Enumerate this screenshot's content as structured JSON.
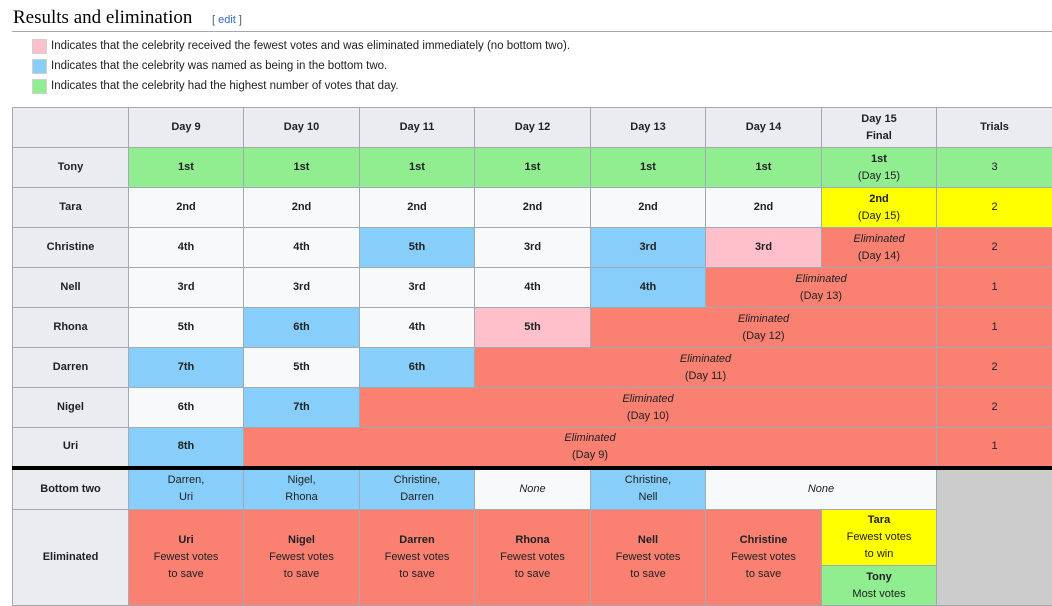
{
  "heading": {
    "title": "Results and elimination",
    "edit_open": "[ ",
    "edit_label": "edit",
    "edit_close": " ]"
  },
  "legend": [
    {
      "color": "#ffc0cb",
      "text": "Indicates that the celebrity received the fewest votes and was eliminated immediately (no bottom two)."
    },
    {
      "color": "#87cefa",
      "text": "Indicates that the celebrity was named as being in the bottom two."
    },
    {
      "color": "#90ee90",
      "text": "Indicates that the celebrity had the highest number of votes that day."
    }
  ],
  "table": {
    "headers": [
      "",
      "Day 9",
      "Day 10",
      "Day 11",
      "Day 12",
      "Day 13",
      "Day 14",
      "Day 15",
      "Final",
      "Trials"
    ],
    "rows": [
      {
        "name": "Tony",
        "cells": [
          "1st",
          "1st",
          "1st",
          "1st",
          "1st",
          "1st",
          "1st"
        ],
        "final_sub": "(Day 15)",
        "trials": "3"
      },
      {
        "name": "Tara",
        "cells": [
          "2nd",
          "2nd",
          "2nd",
          "2nd",
          "2nd",
          "2nd",
          "2nd"
        ],
        "final_sub": "(Day 15)",
        "trials": "2"
      },
      {
        "name": "Christine",
        "cells": [
          "4th",
          "4th",
          "5th",
          "3rd",
          "3rd",
          "3rd"
        ],
        "elim": "Eliminated",
        "elim_day": "(Day 14)",
        "trials": "2"
      },
      {
        "name": "Nell",
        "cells": [
          "3rd",
          "3rd",
          "3rd",
          "4th",
          "4th"
        ],
        "elim": "Eliminated",
        "elim_day": "(Day 13)",
        "trials": "1"
      },
      {
        "name": "Rhona",
        "cells": [
          "5th",
          "6th",
          "4th",
          "5th"
        ],
        "elim": "Eliminated",
        "elim_day": "(Day 12)",
        "trials": "1"
      },
      {
        "name": "Darren",
        "cells": [
          "7th",
          "5th",
          "6th"
        ],
        "elim": "Eliminated",
        "elim_day": "(Day 11)",
        "trials": "2"
      },
      {
        "name": "Nigel",
        "cells": [
          "6th",
          "7th"
        ],
        "elim": "Eliminated",
        "elim_day": "(Day 10)",
        "trials": "2"
      },
      {
        "name": "Uri",
        "cells": [
          "8th"
        ],
        "elim": "Eliminated",
        "elim_day": "(Day 9)",
        "trials": "1"
      }
    ],
    "bottom_two": {
      "label": "Bottom two",
      "cells": [
        [
          "Darren,",
          "Uri"
        ],
        [
          "Nigel,",
          "Rhona"
        ],
        [
          "Christine,",
          "Darren"
        ],
        [
          "None"
        ],
        [
          "Christine,",
          "Nell"
        ],
        [
          "None"
        ]
      ]
    },
    "eliminated": {
      "label": "Eliminated",
      "cells": [
        {
          "name": "Uri",
          "l1": "Fewest votes",
          "l2": "to save"
        },
        {
          "name": "Nigel",
          "l1": "Fewest votes",
          "l2": "to save"
        },
        {
          "name": "Darren",
          "l1": "Fewest votes",
          "l2": "to save"
        },
        {
          "name": "Rhona",
          "l1": "Fewest votes",
          "l2": "to save"
        },
        {
          "name": "Nell",
          "l1": "Fewest votes",
          "l2": "to save"
        },
        {
          "name": "Christine",
          "l1": "Fewest votes",
          "l2": "to save"
        }
      ],
      "final_second": {
        "name": "Tara",
        "l1": "Fewest votes",
        "l2": "to win"
      },
      "final_winner": {
        "name": "Tony",
        "l1": "Most votes"
      }
    }
  }
}
